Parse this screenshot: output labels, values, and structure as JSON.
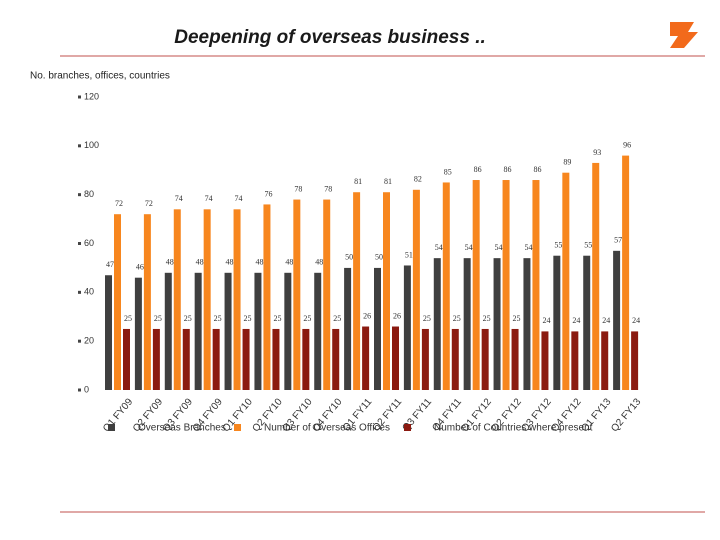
{
  "chart_data": {
    "type": "bar",
    "title": "Deepening of overseas business ..",
    "subtitle": "No. branches, offices, countries",
    "categories": [
      "Q1 FY09",
      "Q2 FY09",
      "Q3 FY09",
      "Q4 FY09",
      "Q1 FY10",
      "Q2 FY10",
      "Q3 FY10",
      "Q4 FY10",
      "Q1 FY11",
      "Q2 FY11",
      "Q3 FY11",
      "Q4 FY11",
      "Q1 FY12",
      "Q2 FY12",
      "Q3 FY12",
      "Q4 FY12",
      "Q1 FY13",
      "Q2 FY13"
    ],
    "series": [
      {
        "name": "Overseas Branches",
        "color": "#3f3f3f",
        "values": [
          47,
          46,
          48,
          48,
          48,
          48,
          48,
          48,
          50,
          50,
          51,
          54,
          54,
          54,
          54,
          55,
          55,
          57
        ]
      },
      {
        "name": "Number of Overseas Offices",
        "color": "#f7861e",
        "values": [
          72,
          72,
          74,
          74,
          74,
          76,
          78,
          78,
          81,
          81,
          82,
          85,
          86,
          86,
          86,
          89,
          93,
          96
        ]
      },
      {
        "name": "Number of Countries where present",
        "color": "#8b1a10",
        "values": [
          25,
          25,
          25,
          25,
          25,
          25,
          25,
          25,
          26,
          26,
          25,
          25,
          25,
          25,
          24,
          24,
          24,
          24
        ]
      }
    ],
    "ylim": [
      0,
      120
    ],
    "yticks": [
      0,
      20,
      40,
      60,
      80,
      100,
      120
    ],
    "grid": false
  }
}
